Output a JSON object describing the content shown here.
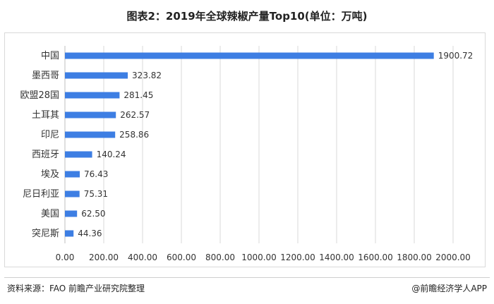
{
  "title": "图表2：2019年全球辣椒产量Top10(单位：万吨)",
  "source": "资料来源：FAO 前瞻产业研究院整理",
  "brand": "@前瞻经济学人APP",
  "colors": {
    "bar": "#3d7ee3",
    "grid": "#d9d9d9",
    "text": "#333333"
  },
  "chart_data": {
    "type": "bar",
    "orientation": "horizontal",
    "categories": [
      "中国",
      "墨西哥",
      "欧盟28国",
      "土耳其",
      "印尼",
      "西班牙",
      "埃及",
      "尼日利亚",
      "美国",
      "突尼斯"
    ],
    "values": [
      1900.72,
      323.82,
      281.45,
      262.57,
      258.86,
      140.24,
      76.43,
      75.31,
      62.5,
      44.36
    ],
    "value_labels": [
      "1900.72",
      "323.82",
      "281.45",
      "262.57",
      "258.86",
      "140.24",
      "76.43",
      "75.31",
      "62.50",
      "44.36"
    ],
    "x_ticks": [
      "0.00",
      "200.00",
      "400.00",
      "600.00",
      "800.00",
      "1000.00",
      "1200.00",
      "1400.00",
      "1600.00",
      "1800.00",
      "2000.00"
    ],
    "xlim": [
      0,
      2000
    ],
    "grid": "vertical",
    "title": "图表2：2019年全球辣椒产量Top10(单位：万吨)"
  }
}
